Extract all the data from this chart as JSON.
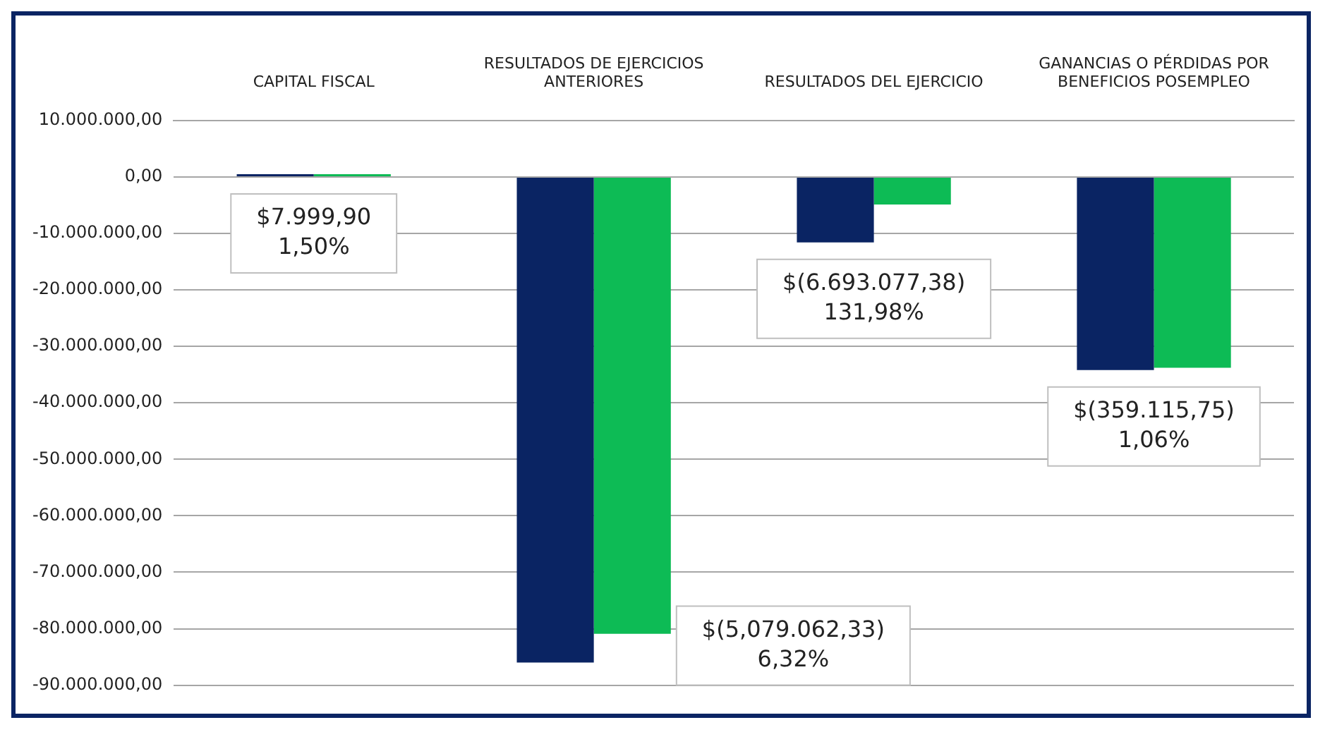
{
  "chart_data": {
    "type": "bar",
    "categories": [
      "CAPITAL FISCAL",
      "RESULTADOS DE EJERCICIOS ANTERIORES",
      "RESULTADOS DEL EJERCICIO",
      "GANANCIAS O PÉRDIDAS POR BENEFICIOS POSEMPLEO"
    ],
    "series": [
      {
        "color": "#0a2463",
        "values": [
          500000,
          -86000000,
          -11600000,
          -34200000
        ]
      },
      {
        "color": "#0dbb55",
        "values": [
          500000,
          -80900000,
          -4900000,
          -33800000
        ]
      }
    ],
    "ylim": [
      -90000000,
      10000000
    ],
    "yticks": [
      {
        "value": 10000000,
        "label": "10.000.000,00"
      },
      {
        "value": 0,
        "label": "0,00"
      },
      {
        "value": -10000000,
        "label": "-10.000.000,00"
      },
      {
        "value": -20000000,
        "label": "-20.000.000,00"
      },
      {
        "value": -30000000,
        "label": "-30.000.000,00"
      },
      {
        "value": -40000000,
        "label": "-40.000.000,00"
      },
      {
        "value": -50000000,
        "label": "-50.000.000,00"
      },
      {
        "value": -60000000,
        "label": "-60.000.000,00"
      },
      {
        "value": -70000000,
        "label": "-70.000.000,00"
      },
      {
        "value": -80000000,
        "label": "-80.000.000,00"
      },
      {
        "value": -90000000,
        "label": "-90.000.000,00"
      }
    ],
    "grid": "y",
    "annotations": [
      "$7.999,90\n1,50%",
      "$(5,079.062,33)\n6,32%",
      "$(6.693.077,38)\n131,98%",
      "$(359.115,75)\n1,06%"
    ]
  }
}
